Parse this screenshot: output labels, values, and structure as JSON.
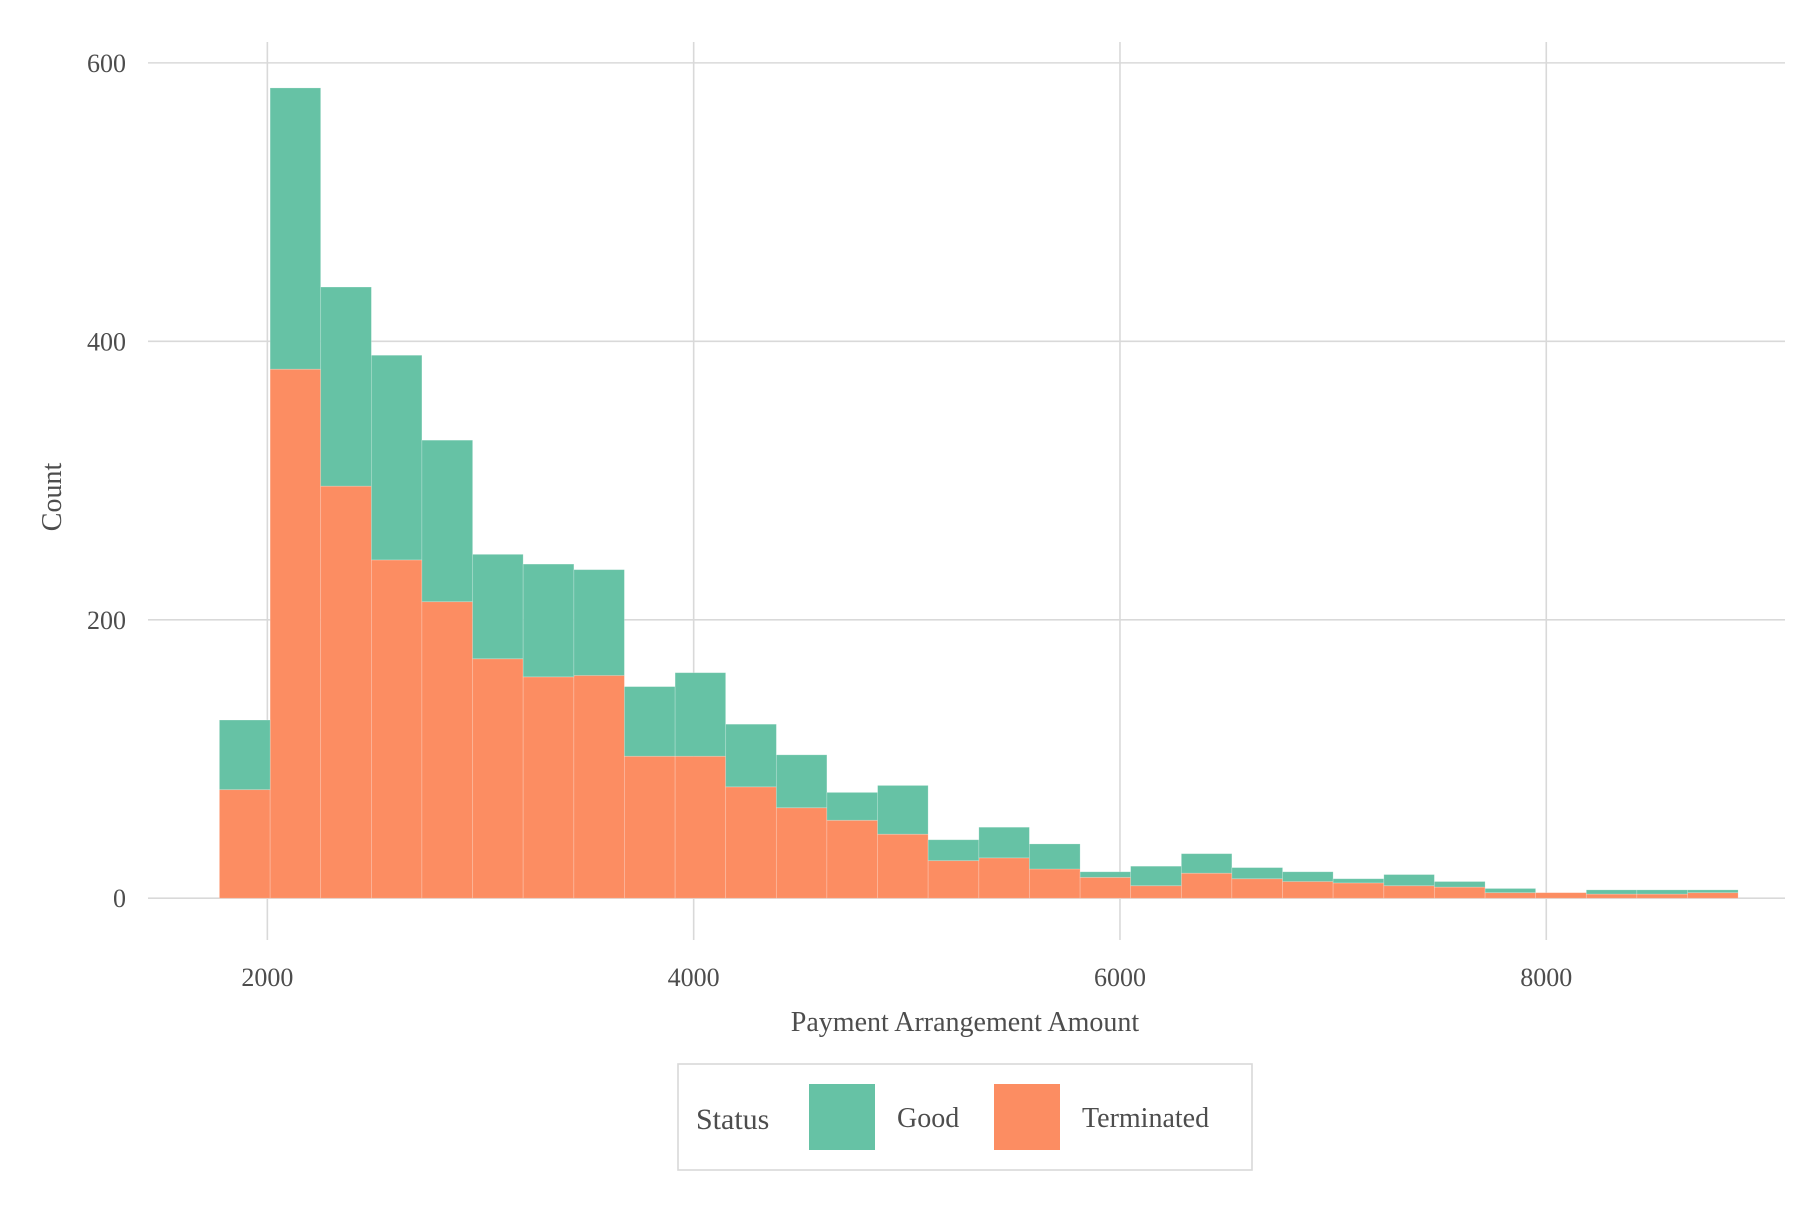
{
  "chart_data": {
    "type": "bar",
    "stacked": true,
    "title": "",
    "xlabel": "Payment Arrangement Amount",
    "ylabel": "Count",
    "xlim": [
      1440,
      9120
    ],
    "ylim": [
      -30,
      615
    ],
    "x_ticks": [
      2000,
      4000,
      6000,
      8000
    ],
    "x_tick_labels": [
      "2000",
      "4000",
      "6000",
      "8000"
    ],
    "y_ticks": [
      0,
      200,
      400,
      600
    ],
    "y_tick_labels": [
      "0",
      "200",
      "400",
      "600"
    ],
    "grid": true,
    "legend": {
      "title": "Status",
      "placement": "bottom"
    },
    "bin_edges": [
      1775,
      2013,
      2250,
      2488,
      2725,
      2963,
      3200,
      3438,
      3675,
      3913,
      4150,
      4388,
      4625,
      4863,
      5100,
      5338,
      5575,
      5813,
      6050,
      6288,
      6525,
      6763,
      7000,
      7238,
      7475,
      7713,
      7950,
      8188,
      8425,
      8663,
      8900
    ],
    "series": [
      {
        "name": "Terminated",
        "color": "#fc8d62",
        "values": [
          78,
          380,
          296,
          243,
          213,
          172,
          159,
          160,
          102,
          102,
          80,
          65,
          56,
          46,
          27,
          29,
          21,
          15,
          9,
          18,
          14,
          12,
          11,
          9,
          8,
          4,
          4,
          3,
          3,
          4
        ]
      },
      {
        "name": "Good",
        "color": "#66c2a5",
        "values": [
          50,
          202,
          143,
          147,
          116,
          75,
          81,
          76,
          50,
          60,
          45,
          38,
          20,
          35,
          15,
          22,
          18,
          4,
          14,
          14,
          8,
          7,
          3,
          8,
          4,
          3,
          0,
          3,
          3,
          2
        ]
      }
    ]
  }
}
